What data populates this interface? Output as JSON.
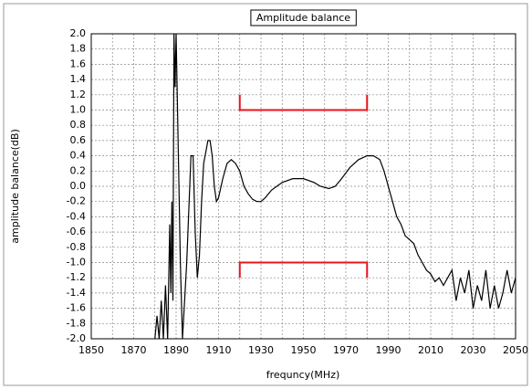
{
  "chart_data": {
    "type": "line",
    "title": "Amplitude balance",
    "xlabel": "frequncy(MHz)",
    "ylabel": "amplitude balance(dB)",
    "xlim": [
      1850,
      2050
    ],
    "xticks": [
      1850,
      1870,
      1890,
      1910,
      1930,
      1950,
      1970,
      1990,
      2010,
      2030,
      2050
    ],
    "xgrid_minor": [
      1860,
      1880,
      1900,
      1920,
      1940,
      1960,
      1980,
      2000,
      2020,
      2040
    ],
    "ylim": [
      -2.0,
      2.0
    ],
    "yticks": [
      {
        "value": -2,
        "label": "-2.0"
      },
      {
        "value": -1.8,
        "label": "-1.8"
      },
      {
        "value": -1.6,
        "label": "-1.6"
      },
      {
        "value": -1.4,
        "label": "-1.4"
      },
      {
        "value": -1.2,
        "label": "-1.2"
      },
      {
        "value": -1,
        "label": "-1.0"
      },
      {
        "value": -0.8,
        "label": "-0.8"
      },
      {
        "value": -0.6,
        "label": "-0.6"
      },
      {
        "value": -0.4,
        "label": "-0.4"
      },
      {
        "value": -0.2,
        "label": "-0.2"
      },
      {
        "value": 0,
        "label": "0.0"
      },
      {
        "value": 0.2,
        "label": "0.2"
      },
      {
        "value": 0.4,
        "label": "0.4"
      },
      {
        "value": 0.6,
        "label": "0.6"
      },
      {
        "value": 0.8,
        "label": "0.8"
      },
      {
        "value": 1,
        "label": "1.0"
      },
      {
        "value": 1.2,
        "label": "1.2"
      },
      {
        "value": 1.4,
        "label": "1.4"
      },
      {
        "value": 1.6,
        "label": "1.6"
      },
      {
        "value": 1.8,
        "label": "1.8"
      },
      {
        "value": 2,
        "label": "2.0"
      }
    ],
    "grid": true,
    "limits": [
      {
        "x": [
          1920,
          1980
        ],
        "y": 1.0,
        "end": 1.2,
        "color": "#e8141b"
      },
      {
        "x": [
          1920,
          1980
        ],
        "y": -1.0,
        "end": -1.2,
        "color": "#e8141b"
      }
    ],
    "series": [
      {
        "color": "#000000",
        "x": [
          1880,
          1881,
          1882,
          1883,
          1884,
          1885,
          1886,
          1887,
          1887.5,
          1888,
          1888.5,
          1889,
          1889.5,
          1890,
          1891,
          1892,
          1893,
          1895,
          1897,
          1898,
          1899,
          1900,
          1901,
          1902,
          1903,
          1905,
          1906,
          1907,
          1908,
          1909,
          1910,
          1912,
          1914,
          1916,
          1918,
          1920,
          1922,
          1924,
          1926,
          1928,
          1930,
          1932,
          1935,
          1940,
          1945,
          1950,
          1955,
          1958,
          1962,
          1965,
          1968,
          1972,
          1976,
          1980,
          1983,
          1986,
          1988,
          1990,
          1992,
          1994,
          1996,
          1998,
          2000,
          2002,
          2004,
          2006,
          2008,
          2010,
          2012,
          2014,
          2016,
          2018,
          2020,
          2022,
          2024,
          2026,
          2028,
          2030,
          2032,
          2034,
          2036,
          2038,
          2040,
          2042,
          2044,
          2046,
          2048,
          2050
        ],
        "values": [
          -2.0,
          -1.7,
          -2.0,
          -1.5,
          -2.0,
          -1.3,
          -2.0,
          -0.5,
          -1.4,
          -0.2,
          -1.5,
          2.0,
          1.3,
          2.0,
          0.5,
          -1.0,
          -2.0,
          -1.0,
          0.4,
          0.4,
          -0.6,
          -1.2,
          -0.9,
          -0.2,
          0.3,
          0.6,
          0.6,
          0.4,
          0.0,
          -0.2,
          -0.15,
          0.1,
          0.3,
          0.35,
          0.3,
          0.2,
          0.0,
          -0.1,
          -0.17,
          -0.2,
          -0.2,
          -0.15,
          -0.05,
          0.05,
          0.1,
          0.1,
          0.05,
          0.0,
          -0.03,
          0.0,
          0.1,
          0.25,
          0.35,
          0.4,
          0.4,
          0.35,
          0.2,
          0.0,
          -0.2,
          -0.4,
          -0.5,
          -0.65,
          -0.7,
          -0.75,
          -0.9,
          -1.0,
          -1.1,
          -1.15,
          -1.25,
          -1.2,
          -1.3,
          -1.2,
          -1.1,
          -1.5,
          -1.2,
          -1.4,
          -1.1,
          -1.6,
          -1.3,
          -1.5,
          -1.1,
          -1.6,
          -1.3,
          -1.6,
          -1.4,
          -1.1,
          -1.4,
          -1.2
        ]
      }
    ]
  }
}
